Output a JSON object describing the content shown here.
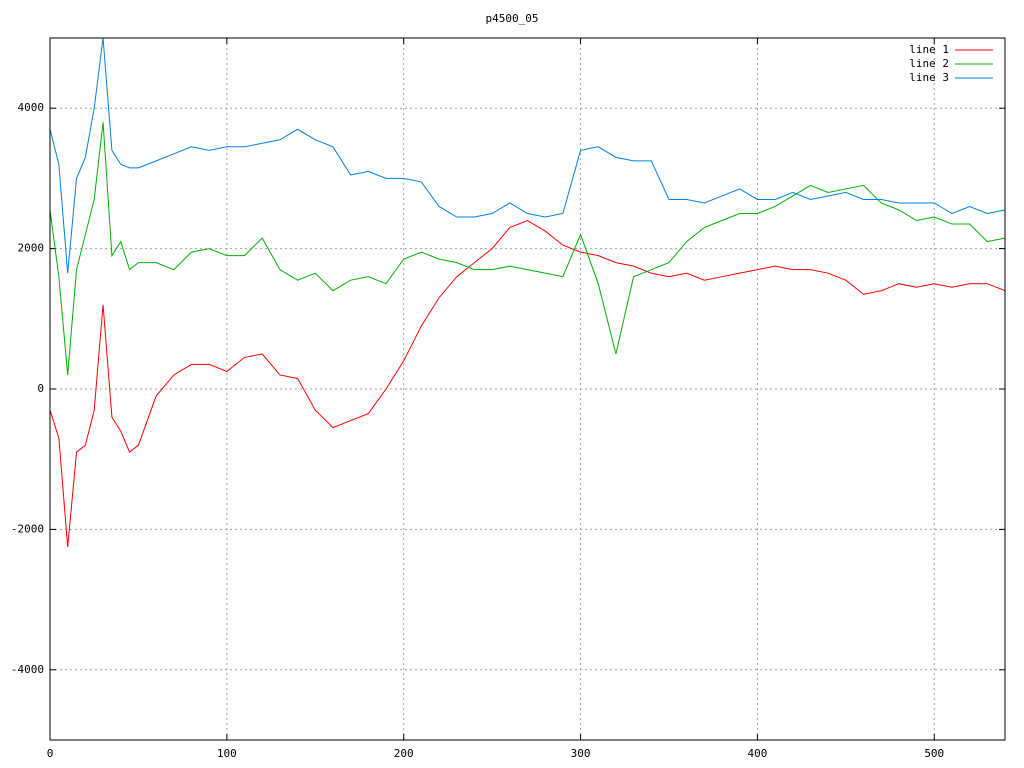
{
  "chart_data": {
    "type": "line",
    "title": "p4500_05",
    "x": [
      0,
      5,
      10,
      15,
      20,
      25,
      30,
      35,
      40,
      45,
      50,
      60,
      70,
      80,
      90,
      100,
      110,
      120,
      130,
      140,
      150,
      160,
      170,
      180,
      190,
      200,
      210,
      220,
      230,
      240,
      250,
      260,
      270,
      280,
      290,
      300,
      310,
      320,
      330,
      340,
      350,
      360,
      370,
      380,
      390,
      400,
      410,
      420,
      430,
      440,
      450,
      460,
      470,
      480,
      490,
      500,
      510,
      520,
      530,
      540
    ],
    "series": [
      {
        "name": "line 1",
        "color": "#ff0000",
        "values": [
          -300,
          -700,
          -2250,
          -900,
          -800,
          -300,
          1200,
          -400,
          -600,
          -900,
          -800,
          -100,
          200,
          350,
          350,
          250,
          450,
          500,
          200,
          150,
          -300,
          -550,
          -450,
          -350,
          0,
          400,
          900,
          1300,
          1600,
          1800,
          2000,
          2300,
          2400,
          2250,
          2050,
          1950,
          1900,
          1800,
          1750,
          1650,
          1600,
          1650,
          1550,
          1600,
          1650,
          1700,
          1750,
          1700,
          1700,
          1650,
          1550,
          1350,
          1400,
          1500,
          1450,
          1500,
          1450,
          1500,
          1500,
          1400
        ]
      },
      {
        "name": "line 2",
        "color": "#00b000",
        "values": [
          2550,
          1600,
          200,
          1700,
          2200,
          2700,
          3800,
          1900,
          2100,
          1700,
          1800,
          1800,
          1700,
          1950,
          2000,
          1900,
          1900,
          2150,
          1700,
          1550,
          1650,
          1400,
          1550,
          1600,
          1500,
          1850,
          1950,
          1850,
          1800,
          1700,
          1700,
          1750,
          1700,
          1650,
          1600,
          2200,
          1500,
          500,
          1600,
          1700,
          1800,
          2100,
          2300,
          2400,
          2500,
          2500,
          2600,
          2750,
          2900,
          2800,
          2850,
          2900,
          2650,
          2550,
          2400,
          2450,
          2350,
          2350,
          2100,
          2150
        ]
      },
      {
        "name": "line 3",
        "color": "#0080e0",
        "values": [
          3700,
          3200,
          1650,
          3000,
          3300,
          4000,
          5000,
          3400,
          3200,
          3150,
          3150,
          3250,
          3350,
          3450,
          3400,
          3450,
          3450,
          3500,
          3550,
          3700,
          3550,
          3450,
          3050,
          3100,
          3000,
          3000,
          2950,
          2600,
          2450,
          2450,
          2500,
          2650,
          2500,
          2450,
          2500,
          3400,
          3450,
          3300,
          3250,
          3250,
          2700,
          2700,
          2650,
          2750,
          2850,
          2700,
          2700,
          2800,
          2700,
          2750,
          2800,
          2700,
          2700,
          2650,
          2650,
          2650,
          2500,
          2600,
          2500,
          2550
        ]
      }
    ],
    "xlim": [
      0,
      540
    ],
    "xticks": [
      0,
      100,
      200,
      300,
      400,
      500
    ],
    "ylim": [
      -5000,
      5000
    ],
    "yticks": [
      -4000,
      -2000,
      0,
      2000,
      4000
    ],
    "grid": true,
    "legend": "top-right"
  }
}
